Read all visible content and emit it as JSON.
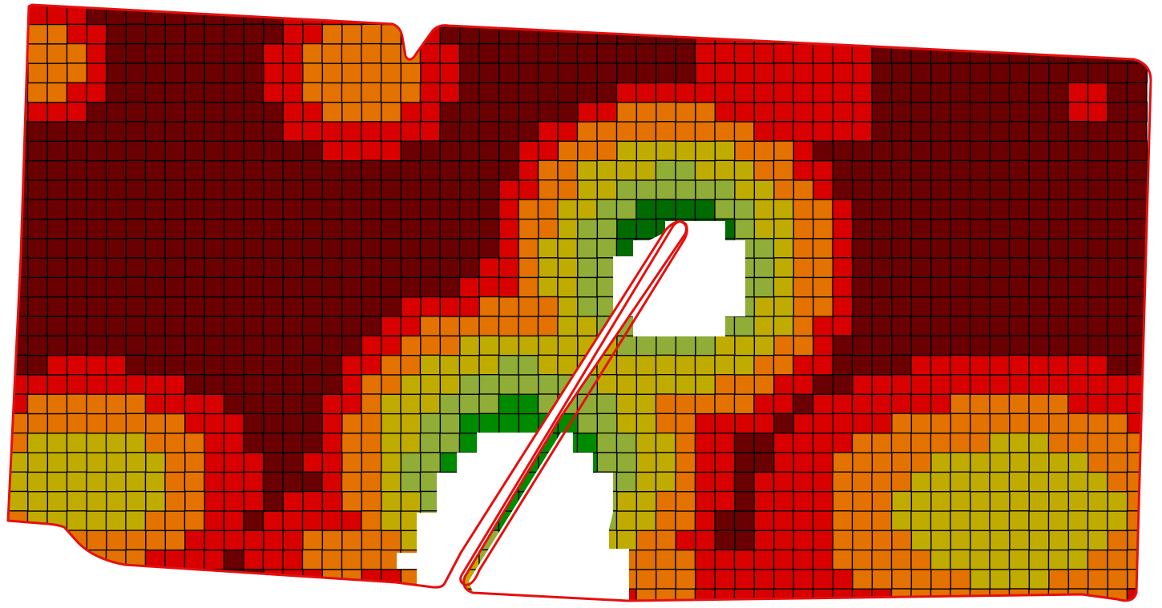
{
  "map": {
    "title": "",
    "legend": [],
    "colors": {
      "very_low": "#6a0002",
      "low": "#d90000",
      "medium": "#e37200",
      "medium_high": "#c0ab00",
      "high": "#8fad37",
      "very_high": "#008a00",
      "peak": "#006b00",
      "boundary": "#e4100f",
      "grid_line": "#000000",
      "background": "#ffffff"
    },
    "zones": [
      "very_low",
      "low",
      "medium",
      "medium_high",
      "high",
      "very_high",
      "peak"
    ]
  }
}
